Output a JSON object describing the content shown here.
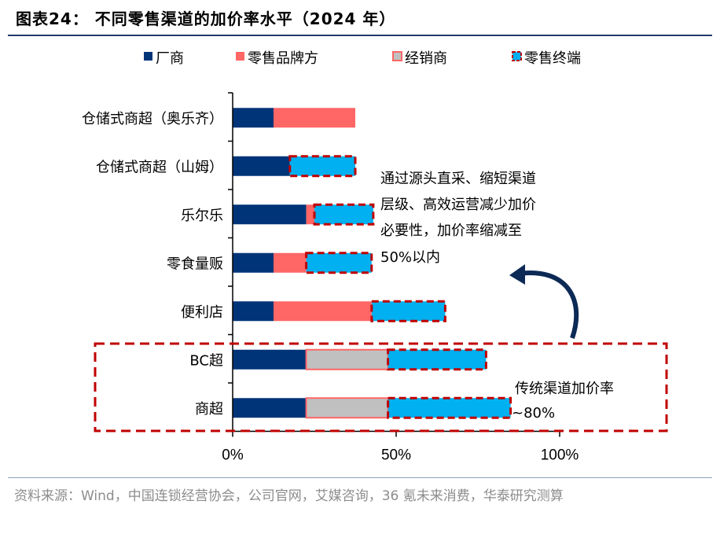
{
  "title": "图表24：  不同零售渠道的加价率水平（2024 年）",
  "source": "资料来源：Wind，中国连锁经营协会，公司官网，艾媒咨询，36 氪未来消费，华泰研究测算",
  "chart_data": {
    "type": "bar",
    "orientation": "horizontal",
    "stacked": true,
    "categories": [
      "仓储式商超（奥乐齐）",
      "仓储式商超（山姆）",
      "乐尔乐",
      "零食量贩",
      "便利店",
      "BC超",
      "商超"
    ],
    "series": [
      {
        "name": "厂商",
        "color": "#003478",
        "values": [
          12.5,
          17.5,
          22.5,
          12.5,
          12.5,
          22.5,
          22.5
        ]
      },
      {
        "name": "零售品牌方",
        "color": "#ff6666",
        "values": [
          25,
          0,
          2.5,
          10,
          30,
          0,
          0
        ]
      },
      {
        "name": "经销商",
        "color": "#c0c0c0",
        "values": [
          0,
          0,
          0,
          0,
          0,
          25,
          25
        ]
      },
      {
        "name": "零售终端",
        "color": "#00b0f0",
        "values": [
          0,
          20,
          18,
          20,
          22.5,
          30,
          37.5
        ]
      }
    ],
    "xlim": [
      0,
      100
    ],
    "xticks": [
      "0%",
      "50%",
      "100%"
    ],
    "legend": "top",
    "grid": false,
    "annotations": {
      "modern": [
        "通过源头直采、缩短渠道",
        "层级、高效运营减少加价",
        "必要性，加价率缩减至",
        "50%以内"
      ],
      "traditional": [
        "传统渠道加价率",
        "~80%"
      ]
    },
    "highlight_color": "#c00000"
  }
}
